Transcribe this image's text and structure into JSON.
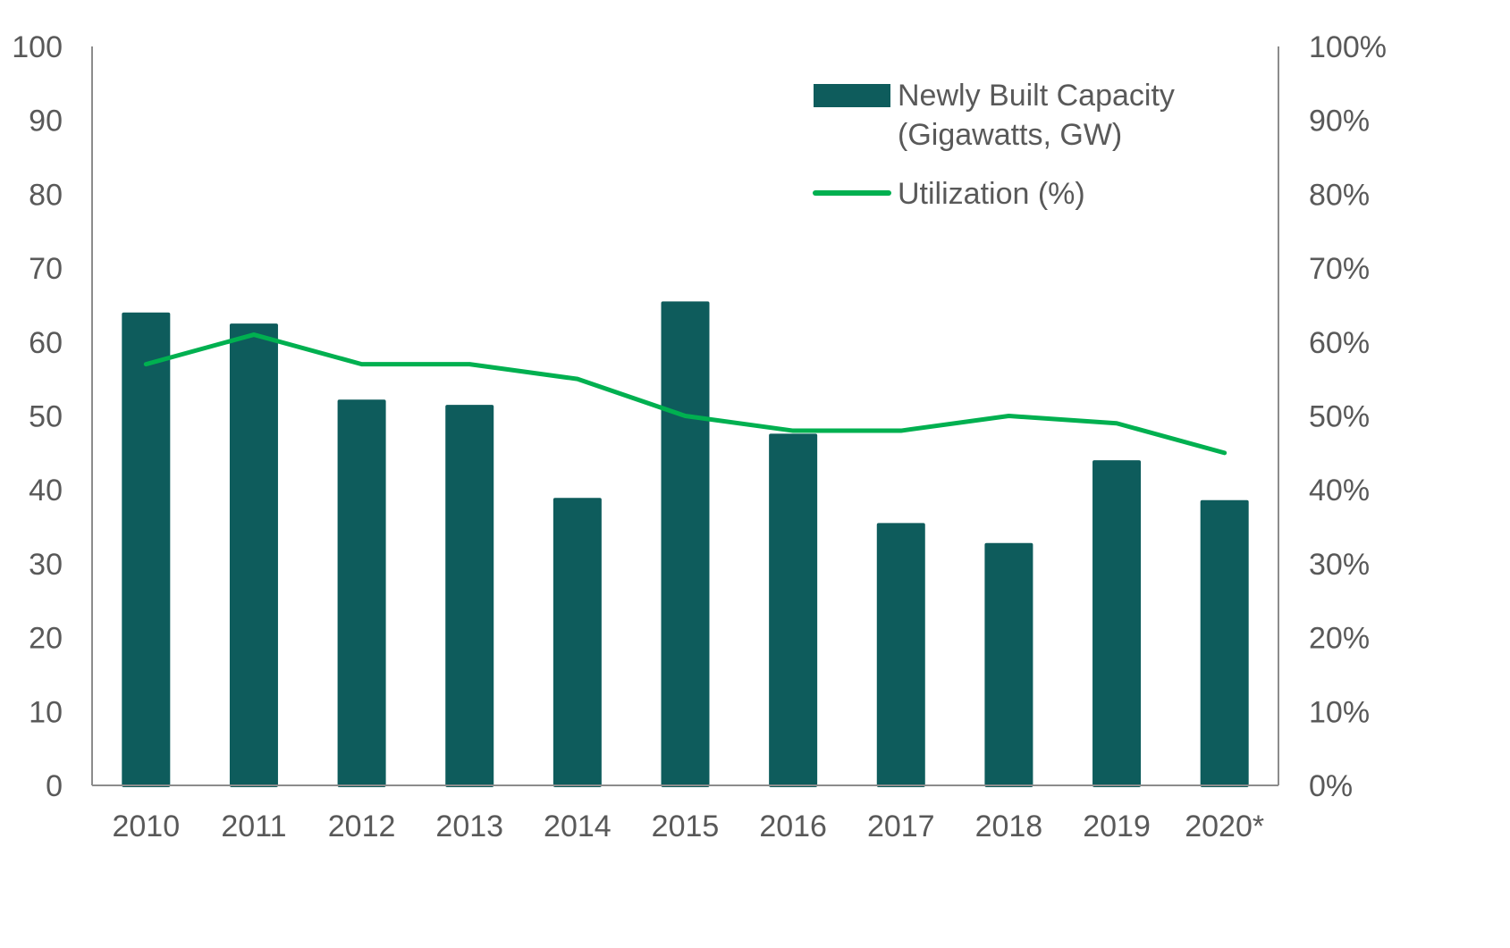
{
  "chart_data": {
    "type": "bar+line",
    "categories": [
      "2010",
      "2011",
      "2012",
      "2013",
      "2014",
      "2015",
      "2016",
      "2017",
      "2018",
      "2019",
      "2020*"
    ],
    "series": [
      {
        "name": "Newly Built Capacity (Gigawatts, GW)",
        "type": "bar",
        "axis": "left",
        "values": [
          64.0,
          62.5,
          52.2,
          51.5,
          38.9,
          65.5,
          47.6,
          35.5,
          32.8,
          44.0,
          38.6
        ]
      },
      {
        "name": "Utilization (%)",
        "type": "line",
        "axis": "right",
        "values": [
          57,
          61,
          57,
          57,
          55,
          50,
          48,
          48,
          50,
          49,
          45
        ]
      }
    ],
    "legend": {
      "bar_line1": "Newly Built Capacity",
      "bar_line2": "(Gigawatts, GW)",
      "line": "Utilization (%)",
      "placement": "top-right"
    },
    "ylim_left": [
      0,
      100
    ],
    "ylim_right": [
      0,
      100
    ],
    "yticks_left": [
      "0",
      "10",
      "20",
      "30",
      "40",
      "50",
      "60",
      "70",
      "80",
      "90",
      "100"
    ],
    "yticks_right": [
      "0%",
      "10%",
      "20%",
      "30%",
      "40%",
      "50%",
      "60%",
      "70%",
      "80%",
      "90%",
      "100%"
    ],
    "grid": false,
    "colors": {
      "bar": "#0e5c5c",
      "line": "#00b050",
      "axis": "#8c8c8c",
      "text": "#595959"
    }
  }
}
